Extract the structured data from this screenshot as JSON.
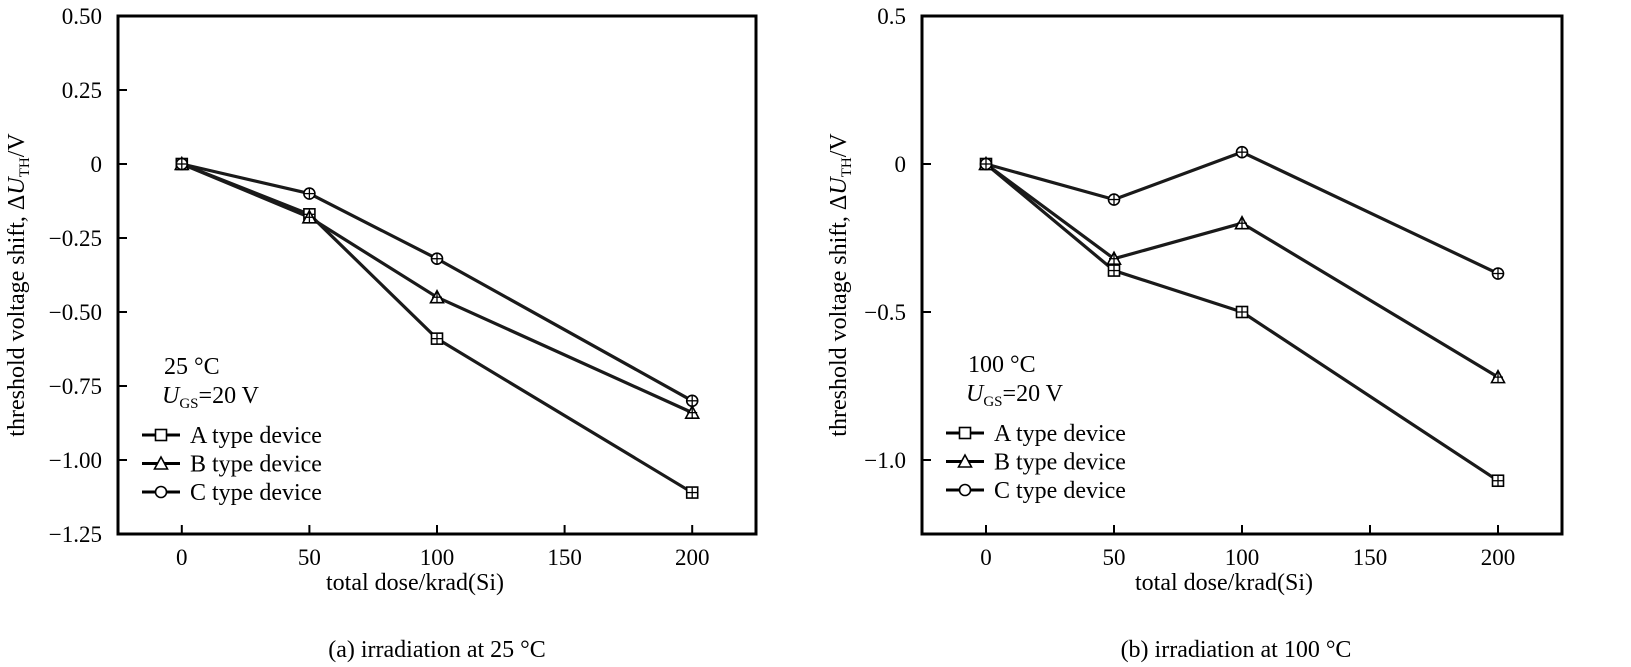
{
  "chart_data": [
    {
      "type": "line",
      "caption": "(a) irradiation at 25 °C",
      "xlabel": "total dose/krad(Si)",
      "ylabel": {
        "prefix": "threshold voltage shift, Δ",
        "italic": "U",
        "sub": "TH",
        "suffix": "/V"
      },
      "xlim": [
        -25,
        225
      ],
      "ylim": [
        -1.25,
        0.5
      ],
      "xticks": [
        0,
        50,
        100,
        150,
        200
      ],
      "xtick_labels": [
        "0",
        "50",
        "100",
        "150",
        "200"
      ],
      "yticks": [
        0.5,
        0.25,
        0,
        -0.25,
        -0.5,
        -0.75,
        -1.0,
        -1.25
      ],
      "ytick_labels": [
        "0.50",
        "0.25",
        "0",
        "−0.25",
        "−0.50",
        "−0.75",
        "−1.00",
        "−1.25"
      ],
      "annotation": {
        "line1": "25 °C",
        "italic": "U",
        "sub": "GS",
        "rest": "=20 V"
      },
      "legend_position": "bottom-left",
      "x": [
        0,
        50,
        100,
        200
      ],
      "series": [
        {
          "name": "A type device",
          "marker": "square",
          "values": [
            0,
            -0.17,
            -0.59,
            -1.11
          ]
        },
        {
          "name": "B type device",
          "marker": "triangle",
          "values": [
            0,
            -0.18,
            -0.45,
            -0.84
          ]
        },
        {
          "name": "C type device",
          "marker": "circle",
          "values": [
            0,
            -0.1,
            -0.32,
            -0.8
          ]
        }
      ]
    },
    {
      "type": "line",
      "caption": "(b) irradiation at 100 °C",
      "xlabel": "total dose/krad(Si)",
      "ylabel": {
        "prefix": "threshold voltage shift, Δ",
        "italic": "U",
        "sub": "TH",
        "suffix": "/V"
      },
      "xlim": [
        -25,
        225
      ],
      "ylim": [
        -1.25,
        0.5
      ],
      "xticks": [
        0,
        50,
        100,
        150,
        200
      ],
      "xtick_labels": [
        "0",
        "50",
        "100",
        "150",
        "200"
      ],
      "yticks": [
        0.5,
        0,
        -0.5,
        -1.0
      ],
      "ytick_labels": [
        "0.5",
        "0",
        "−0.5",
        "−1.0"
      ],
      "annotation": {
        "line1": "100 °C",
        "italic": "U",
        "sub": "GS",
        "rest": "=20 V"
      },
      "legend_position": "bottom-left",
      "x": [
        0,
        50,
        100,
        200
      ],
      "series": [
        {
          "name": "A type device",
          "marker": "square",
          "values": [
            0,
            -0.36,
            -0.5,
            -1.07
          ]
        },
        {
          "name": "B type device",
          "marker": "triangle",
          "values": [
            0,
            -0.32,
            -0.2,
            -0.72
          ]
        },
        {
          "name": "C type device",
          "marker": "circle",
          "values": [
            0,
            -0.12,
            0.04,
            -0.37
          ]
        }
      ]
    }
  ]
}
